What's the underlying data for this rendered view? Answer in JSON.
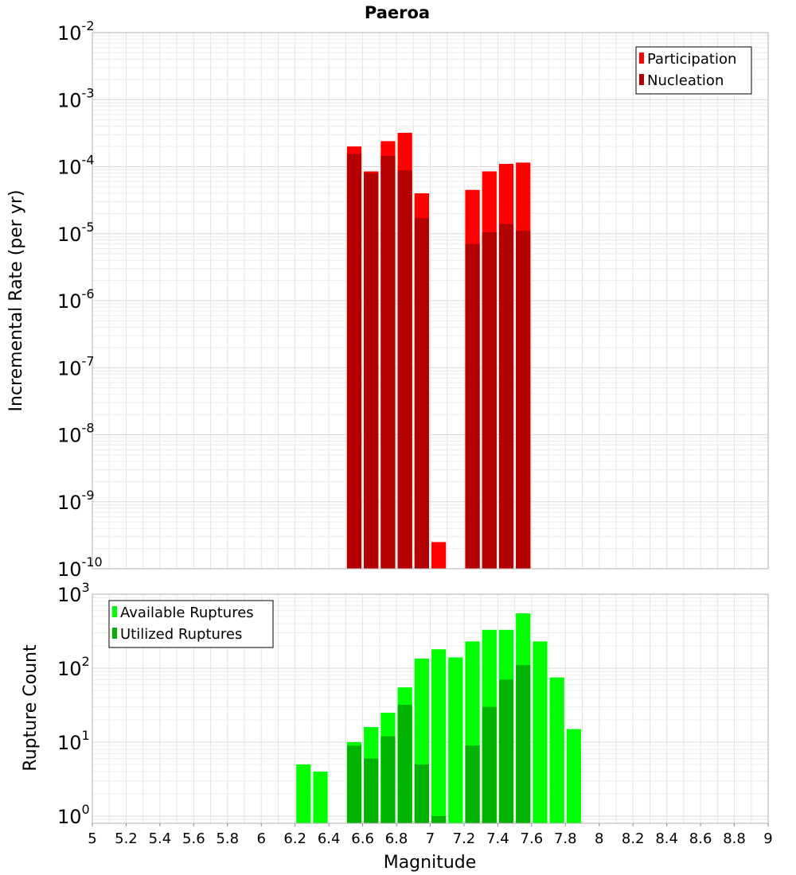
{
  "chart_data": [
    {
      "type": "bar",
      "title": "Paeroa",
      "xlabel": "",
      "ylabel": "Incremental Rate (per yr)",
      "yscale": "log",
      "xlim": [
        5,
        9
      ],
      "ylim": [
        1e-10,
        0.01
      ],
      "ytick_bases": [
        "10",
        "10",
        "10",
        "10",
        "10",
        "10",
        "10",
        "10",
        "10"
      ],
      "ytick_exps": [
        "-10",
        "-9",
        "-8",
        "-7",
        "-6",
        "-5",
        "-4",
        "-3",
        "-2"
      ],
      "grid": true,
      "legend_position": "top-right",
      "bar_width": 0.1,
      "x": [
        6.55,
        6.65,
        6.75,
        6.85,
        6.95,
        7.05,
        7.25,
        7.35,
        7.45,
        7.55
      ],
      "series": [
        {
          "name": "Participation",
          "color": "#ff0000",
          "values": [
            0.0002,
            8.5e-05,
            0.00024,
            0.00032,
            4e-05,
            2.5e-10,
            4.5e-05,
            8.5e-05,
            0.00011,
            0.000115
          ]
        },
        {
          "name": "Nucleation",
          "color": "#b30000",
          "values": [
            0.000155,
            8e-05,
            0.000145,
            8.8e-05,
            1.7e-05,
            null,
            7e-06,
            1.05e-05,
            1.4e-05,
            1.1e-05
          ]
        }
      ]
    },
    {
      "type": "bar",
      "title": "",
      "xlabel": "Magnitude",
      "ylabel": "Rupture Count",
      "yscale": "log",
      "xlim": [
        5,
        9
      ],
      "ylim": [
        0.8,
        1000
      ],
      "ytick_bases": [
        "10",
        "10",
        "10",
        "10"
      ],
      "ytick_exps": [
        "0",
        "1",
        "2",
        "3"
      ],
      "xtick_labels": [
        "5",
        "5.2",
        "5.4",
        "5.6",
        "5.8",
        "6",
        "6.2",
        "6.4",
        "6.6",
        "6.8",
        "7",
        "7.2",
        "7.4",
        "7.6",
        "7.8",
        "8",
        "8.2",
        "8.4",
        "8.6",
        "8.8",
        "9"
      ],
      "grid": true,
      "legend_position": "top-left",
      "bar_width": 0.1,
      "x": [
        6.25,
        6.35,
        6.55,
        6.65,
        6.75,
        6.85,
        6.95,
        7.05,
        7.15,
        7.25,
        7.35,
        7.45,
        7.55,
        7.65,
        7.75,
        7.85
      ],
      "series": [
        {
          "name": "Available Ruptures",
          "color": "#00ff00",
          "values": [
            5,
            4,
            10,
            16,
            25,
            55,
            135,
            180,
            140,
            230,
            330,
            330,
            550,
            230,
            75,
            15
          ]
        },
        {
          "name": "Utilized Ruptures",
          "color": "#00b300",
          "values": [
            null,
            null,
            9,
            6,
            12,
            32,
            5,
            1,
            null,
            9,
            30,
            70,
            110,
            null,
            null,
            null
          ]
        }
      ]
    }
  ]
}
